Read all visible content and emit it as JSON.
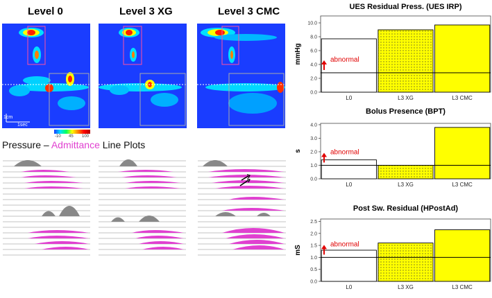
{
  "panels": [
    {
      "title": "Level 0"
    },
    {
      "title": "Level 3 XG"
    },
    {
      "title": "Level 3 CMC"
    }
  ],
  "topography": {
    "scale_distance": "1cm",
    "scale_time": "1sec",
    "colorbar_ticks": [
      "-10",
      "45",
      "100"
    ]
  },
  "lineplot_title": {
    "prefix": "Pressure – ",
    "highlight": "Admittance",
    "suffix": " Line Plots",
    "highlight_color": "#e040d0"
  },
  "colors": {
    "topo_background": "#1a3dff",
    "bar_highlight": "#ffff00",
    "bar_outline": "#000000",
    "abnormal": "#e00000",
    "admittance": "#e040d0"
  },
  "chart_data": [
    {
      "type": "bar",
      "title": "UES Residual Press. (UES IRP)",
      "ylabel": "mmHg",
      "categories": [
        "L0",
        "L3 XG",
        "L3 CMC"
      ],
      "values": [
        7.7,
        9.0,
        9.7
      ],
      "ylim": [
        0,
        11
      ],
      "yticks": [
        "0.0",
        "2.0",
        "4.0",
        "6.0",
        "8.0",
        "10.0"
      ],
      "ytick_values": [
        0,
        2,
        4,
        6,
        8,
        10
      ],
      "threshold": 2.8,
      "annotation": "abnormal"
    },
    {
      "type": "bar",
      "title": "Bolus Presence (BPT)",
      "ylabel": "s",
      "categories": [
        "L0",
        "L3 XG",
        "L3 CMC"
      ],
      "values": [
        1.4,
        1.0,
        3.8
      ],
      "ylim": [
        0,
        4.1
      ],
      "yticks": [
        "0.0",
        "1.0",
        "2.0",
        "3.0",
        "4.0"
      ],
      "ytick_values": [
        0,
        1,
        2,
        3,
        4
      ],
      "threshold": 1.0,
      "annotation": "abnormal"
    },
    {
      "type": "bar",
      "title": "Post Sw. Residual (HPostAd)",
      "ylabel": "mS",
      "categories": [
        "L0",
        "L3 XG",
        "L3 CMC"
      ],
      "values": [
        1.3,
        1.6,
        2.15
      ],
      "ylim": [
        0,
        2.6
      ],
      "yticks": [
        "0.0",
        "0.5",
        "1.0",
        "1.5",
        "2.0",
        "2.5"
      ],
      "ytick_values": [
        0,
        0.5,
        1.0,
        1.5,
        2.0,
        2.5
      ],
      "threshold": 1.0,
      "annotation": "abnormal"
    }
  ]
}
